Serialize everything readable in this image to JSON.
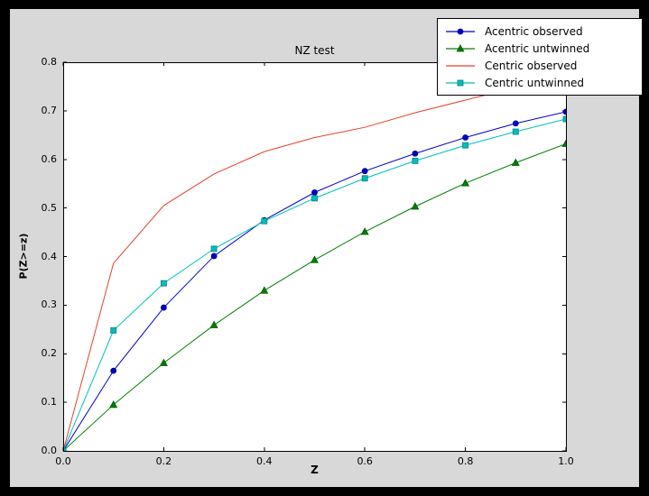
{
  "window": {
    "frame_color": "#000000",
    "figure_bg": "#d8d8d8",
    "plot_bg": "#ffffff",
    "axis_color": "#000000"
  },
  "chart_data": {
    "type": "line",
    "title": "NZ test",
    "xlabel": "Z",
    "ylabel": "P(Z>=z)",
    "xlim": [
      0.0,
      1.0
    ],
    "ylim": [
      0.0,
      0.8
    ],
    "grid": false,
    "legend_position": "upper right",
    "xtick_labels": [
      "0.0",
      "0.2",
      "0.4",
      "0.6",
      "0.8",
      "1.0"
    ],
    "ytick_labels": [
      "0.0",
      "0.1",
      "0.2",
      "0.3",
      "0.4",
      "0.5",
      "0.6",
      "0.7",
      "0.8"
    ],
    "x": [
      0.0,
      0.1,
      0.2,
      0.3,
      0.4,
      0.5,
      0.6,
      0.7,
      0.8,
      0.9,
      1.0
    ],
    "series": [
      {
        "name": "Acentric observed",
        "color": "#0000cd",
        "marker": "circle",
        "marker_edge": "#00008b",
        "values": [
          0.0,
          0.165,
          0.295,
          0.401,
          0.475,
          0.532,
          0.576,
          0.612,
          0.645,
          0.674,
          0.698
        ]
      },
      {
        "name": "Acentric untwinned",
        "color": "#008000",
        "marker": "triangle",
        "marker_edge": "#005500",
        "values": [
          0.0,
          0.095,
          0.181,
          0.259,
          0.33,
          0.393,
          0.451,
          0.503,
          0.551,
          0.593,
          0.632
        ]
      },
      {
        "name": "Centric observed",
        "color": "#e8402c",
        "marker": "none",
        "marker_edge": "#a02010",
        "values": [
          0.0,
          0.386,
          0.505,
          0.57,
          0.616,
          0.645,
          0.666,
          0.696,
          0.722,
          0.748,
          0.772
        ]
      },
      {
        "name": "Centric untwinned",
        "color": "#00bfbf",
        "marker": "square",
        "marker_edge": "#007f7f",
        "values": [
          0.0,
          0.248,
          0.345,
          0.416,
          0.473,
          0.52,
          0.561,
          0.597,
          0.629,
          0.657,
          0.683
        ]
      }
    ]
  }
}
